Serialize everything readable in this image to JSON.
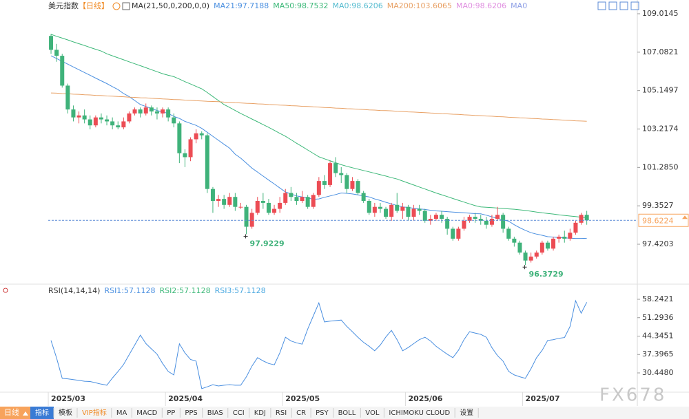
{
  "chart_data": {
    "type": "candlestick",
    "title": "美元指数",
    "period": "【日线】",
    "indicator_label": "MA(21,50,0,200,0,0)",
    "header_items": [
      {
        "text": "MA21:97.7188",
        "color": "#4a8fe0"
      },
      {
        "text": "MA50:98.7532",
        "color": "#3cb878"
      },
      {
        "text": "MA0:98.6206",
        "color": "#56bcd0"
      },
      {
        "text": "MA200:103.6065",
        "color": "#e8a064"
      },
      {
        "text": "MA0:98.6206",
        "color": "#e08fe0"
      },
      {
        "text": "MA0",
        "color": "#8fa0e6"
      }
    ],
    "categories": [
      "2025/03",
      null,
      null,
      null,
      null,
      null,
      null,
      null,
      null,
      null,
      null,
      null,
      null,
      null,
      null,
      null,
      null,
      null,
      null,
      null,
      null,
      "2025/04",
      null,
      null,
      null,
      null,
      null,
      null,
      null,
      null,
      null,
      null,
      null,
      null,
      null,
      null,
      null,
      null,
      null,
      null,
      null,
      null,
      "2025/05",
      null,
      null,
      null,
      null,
      null,
      null,
      null,
      null,
      null,
      null,
      null,
      null,
      null,
      null,
      null,
      null,
      null,
      null,
      null,
      null,
      null,
      "2025/06",
      null,
      null,
      null,
      null,
      null,
      null,
      null,
      null,
      null,
      null,
      null,
      null,
      null,
      null,
      null,
      null,
      null,
      null,
      null,
      null,
      "2025/07",
      null,
      null,
      null,
      null,
      null,
      null,
      null,
      null,
      null,
      null,
      null
    ],
    "ohlc": [
      [
        107.9,
        108.0,
        107.0,
        107.2
      ],
      [
        107.2,
        107.5,
        106.6,
        106.9
      ],
      [
        106.9,
        107.0,
        105.3,
        105.4
      ],
      [
        105.4,
        105.5,
        104.0,
        104.2
      ],
      [
        104.2,
        104.4,
        103.6,
        103.8
      ],
      [
        103.8,
        104.1,
        103.5,
        103.9
      ],
      [
        103.9,
        104.2,
        103.5,
        103.7
      ],
      [
        103.7,
        103.9,
        103.2,
        103.4
      ],
      [
        103.4,
        103.9,
        103.3,
        103.8
      ],
      [
        103.8,
        104.0,
        103.5,
        103.7
      ],
      [
        103.7,
        103.9,
        103.4,
        103.6
      ],
      [
        103.6,
        103.8,
        103.2,
        103.4
      ],
      [
        103.4,
        103.6,
        103.2,
        103.3
      ],
      [
        103.3,
        103.8,
        103.2,
        103.6
      ],
      [
        103.6,
        104.1,
        103.5,
        104.0
      ],
      [
        104.0,
        104.3,
        103.9,
        104.2
      ],
      [
        104.2,
        104.3,
        103.8,
        104.0
      ],
      [
        104.0,
        104.5,
        103.9,
        104.3
      ],
      [
        104.3,
        104.4,
        103.9,
        104.1
      ],
      [
        104.1,
        104.3,
        103.7,
        104.0
      ],
      [
        104.0,
        104.3,
        103.8,
        104.2
      ],
      [
        104.2,
        104.3,
        103.6,
        103.8
      ],
      [
        103.8,
        104.0,
        103.3,
        103.5
      ],
      [
        103.5,
        103.6,
        101.5,
        102.0
      ],
      [
        102.0,
        102.2,
        101.3,
        101.8
      ],
      [
        101.8,
        102.8,
        101.6,
        102.7
      ],
      [
        102.7,
        103.2,
        102.5,
        103.0
      ],
      [
        103.0,
        103.1,
        102.7,
        102.9
      ],
      [
        102.9,
        103.0,
        100.0,
        100.2
      ],
      [
        100.2,
        100.3,
        99.0,
        99.6
      ],
      [
        99.6,
        99.9,
        99.3,
        99.7
      ],
      [
        99.7,
        99.9,
        99.2,
        99.4
      ],
      [
        99.4,
        100.0,
        99.3,
        99.8
      ],
      [
        99.8,
        100.0,
        99.1,
        99.3
      ],
      [
        99.3,
        99.5,
        99.2,
        99.3
      ],
      [
        99.3,
        99.4,
        97.9229,
        98.3
      ],
      [
        98.3,
        99.2,
        98.2,
        99.0
      ],
      [
        99.0,
        99.8,
        98.9,
        99.6
      ],
      [
        99.6,
        100.0,
        99.2,
        99.5
      ],
      [
        99.5,
        99.7,
        98.9,
        99.0
      ],
      [
        99.0,
        99.4,
        98.9,
        99.2
      ],
      [
        99.2,
        99.8,
        99.0,
        99.5
      ],
      [
        99.5,
        100.2,
        99.4,
        100.0
      ],
      [
        100.0,
        100.3,
        99.6,
        99.8
      ],
      [
        99.8,
        100.0,
        99.4,
        99.6
      ],
      [
        99.6,
        100.1,
        99.5,
        99.8
      ],
      [
        99.8,
        99.9,
        99.2,
        99.3
      ],
      [
        99.3,
        100.0,
        99.2,
        99.9
      ],
      [
        99.9,
        100.8,
        99.8,
        100.6
      ],
      [
        100.6,
        100.9,
        100.2,
        100.4
      ],
      [
        100.4,
        101.6,
        100.3,
        101.5
      ],
      [
        101.5,
        101.8,
        100.8,
        101.0
      ],
      [
        101.0,
        101.3,
        100.5,
        100.9
      ],
      [
        100.9,
        101.0,
        100.0,
        100.2
      ],
      [
        100.2,
        100.8,
        100.1,
        100.6
      ],
      [
        100.6,
        100.7,
        99.9,
        100.0
      ],
      [
        100.0,
        100.1,
        99.5,
        99.6
      ],
      [
        99.6,
        99.7,
        98.9,
        99.0
      ],
      [
        99.0,
        99.5,
        98.8,
        99.3
      ],
      [
        99.3,
        99.5,
        99.0,
        99.2
      ],
      [
        99.2,
        99.3,
        98.7,
        98.8
      ],
      [
        98.8,
        99.5,
        98.6,
        99.4
      ],
      [
        99.4,
        100.0,
        99.0,
        99.1
      ],
      [
        99.1,
        99.5,
        98.7,
        99.3
      ],
      [
        99.3,
        99.4,
        98.6,
        98.8
      ],
      [
        98.8,
        99.4,
        98.6,
        99.2
      ],
      [
        99.2,
        99.4,
        98.9,
        99.1
      ],
      [
        99.1,
        99.2,
        98.5,
        98.6
      ],
      [
        98.6,
        98.9,
        98.4,
        98.7
      ],
      [
        98.7,
        99.0,
        98.6,
        98.9
      ],
      [
        98.9,
        99.1,
        98.5,
        98.7
      ],
      [
        98.7,
        98.8,
        97.9,
        98.2
      ],
      [
        98.2,
        98.3,
        97.6,
        97.7
      ],
      [
        97.7,
        98.3,
        97.6,
        98.2
      ],
      [
        98.2,
        98.8,
        98.1,
        98.6
      ],
      [
        98.6,
        98.9,
        98.5,
        98.8
      ],
      [
        98.8,
        99.0,
        98.5,
        98.7
      ],
      [
        98.7,
        98.9,
        98.4,
        98.6
      ],
      [
        98.6,
        98.8,
        98.2,
        98.4
      ],
      [
        98.4,
        98.9,
        98.3,
        98.7
      ],
      [
        98.7,
        99.3,
        98.6,
        98.9
      ],
      [
        98.9,
        99.0,
        98.0,
        98.2
      ],
      [
        98.2,
        98.3,
        97.6,
        97.7
      ],
      [
        97.7,
        97.8,
        97.3,
        97.5
      ],
      [
        97.5,
        97.6,
        96.9,
        97.0
      ],
      [
        97.0,
        97.1,
        96.3729,
        96.6
      ],
      [
        96.6,
        97.0,
        96.5,
        96.8
      ],
      [
        96.8,
        97.1,
        96.7,
        97.0
      ],
      [
        97.0,
        97.6,
        96.9,
        97.5
      ],
      [
        97.5,
        97.6,
        97.1,
        97.2
      ],
      [
        97.2,
        97.8,
        97.1,
        97.7
      ],
      [
        97.7,
        97.9,
        97.5,
        97.8
      ],
      [
        97.8,
        98.1,
        97.5,
        97.7
      ],
      [
        97.7,
        98.2,
        97.6,
        98.0
      ],
      [
        98.0,
        98.6,
        97.9,
        98.5
      ],
      [
        98.5,
        99.0,
        98.4,
        98.9
      ],
      [
        98.9,
        99.1,
        98.4,
        98.6224
      ]
    ],
    "up_color": "#ec4c54",
    "down_color": "#3fb27a",
    "ylim": [
      95.516,
      109.707
    ],
    "yticks": [
      109.0145,
      107.0821,
      105.1497,
      103.2174,
      {
        "value": 101.285,
        "label": "101.2850"
      },
      99.3527,
      97.4203
    ],
    "last_price_color": "#f7a35c",
    "annotations": [
      97.9229,
      96.3729
    ],
    "series": [
      {
        "color": "#4a8fe0",
        "values": [
          106.9,
          106.76,
          106.62,
          106.48,
          106.34,
          106.2,
          106.06,
          105.92,
          105.78,
          105.64,
          105.5,
          105.35,
          105.2,
          105.0,
          104.85,
          104.65,
          104.45,
          104.35,
          104.25,
          104.15,
          104.08,
          104.0,
          103.85,
          103.75,
          103.6,
          103.5,
          103.4,
          103.25,
          103.05,
          102.85,
          102.65,
          102.45,
          102.25,
          101.95,
          101.75,
          101.5,
          101.25,
          101.05,
          100.85,
          100.65,
          100.45,
          100.25,
          100.05,
          99.95,
          99.85,
          99.8,
          99.75,
          99.68,
          99.7,
          99.78,
          99.85,
          99.92,
          100.0,
          99.98,
          99.95,
          99.9,
          99.85,
          99.8,
          99.7,
          99.62,
          99.53,
          99.45,
          99.37,
          99.3,
          99.27,
          99.23,
          99.2,
          99.17,
          99.13,
          99.1,
          99.08,
          99.06,
          99.04,
          99.02,
          99.0,
          98.98,
          98.96,
          98.95,
          98.88,
          98.8,
          98.72,
          98.65,
          98.58,
          98.4,
          98.25,
          98.12,
          98.0,
          97.93,
          97.87,
          97.8,
          97.78,
          97.76,
          97.74,
          97.72,
          97.71,
          97.71,
          97.7188
        ]
      },
      {
        "color": "#3cb878",
        "values": [
          107.98,
          107.88,
          107.79,
          107.7,
          107.6,
          107.51,
          107.42,
          107.32,
          107.23,
          107.14,
          107.0,
          106.9,
          106.8,
          106.7,
          106.6,
          106.5,
          106.4,
          106.3,
          106.2,
          106.1,
          106.0,
          105.92,
          105.85,
          105.73,
          105.6,
          105.48,
          105.36,
          105.24,
          105.05,
          104.85,
          104.65,
          104.45,
          104.3,
          104.15,
          104.0,
          103.86,
          103.72,
          103.58,
          103.44,
          103.3,
          103.15,
          103.0,
          102.85,
          102.68,
          102.5,
          102.33,
          102.16,
          101.99,
          101.82,
          101.72,
          101.62,
          101.52,
          101.42,
          101.34,
          101.27,
          101.2,
          101.13,
          101.06,
          100.99,
          100.92,
          100.85,
          100.77,
          100.7,
          100.6,
          100.5,
          100.4,
          100.3,
          100.2,
          100.1,
          100.0,
          99.91,
          99.82,
          99.72,
          99.63,
          99.54,
          99.45,
          99.36,
          99.3,
          99.28,
          99.26,
          99.24,
          99.22,
          99.2,
          99.18,
          99.15,
          99.12,
          99.08,
          99.04,
          99.0,
          98.97,
          98.94,
          98.9,
          98.87,
          98.84,
          98.81,
          98.78,
          98.7532
        ]
      },
      {
        "color": "#e8a064",
        "values": [
          105.03,
          105.02,
          105.0,
          104.99,
          104.97,
          104.96,
          104.94,
          104.93,
          104.91,
          104.9,
          104.88,
          104.87,
          104.85,
          104.84,
          104.82,
          104.81,
          104.79,
          104.78,
          104.76,
          104.75,
          104.73,
          104.72,
          104.7,
          104.69,
          104.67,
          104.66,
          104.64,
          104.63,
          104.61,
          104.6,
          104.59,
          104.57,
          104.56,
          104.54,
          104.53,
          104.51,
          104.5,
          104.48,
          104.47,
          104.45,
          104.44,
          104.42,
          104.41,
          104.39,
          104.38,
          104.36,
          104.35,
          104.33,
          104.32,
          104.3,
          104.29,
          104.27,
          104.26,
          104.24,
          104.23,
          104.21,
          104.2,
          104.18,
          104.17,
          104.15,
          104.14,
          104.13,
          104.11,
          104.1,
          104.08,
          104.07,
          104.05,
          104.04,
          104.02,
          104.01,
          103.99,
          103.98,
          103.96,
          103.95,
          103.93,
          103.92,
          103.9,
          103.89,
          103.87,
          103.86,
          103.84,
          103.83,
          103.81,
          103.8,
          103.78,
          103.77,
          103.75,
          103.74,
          103.72,
          103.71,
          103.69,
          103.68,
          103.66,
          103.65,
          103.63,
          103.62,
          103.6065
        ]
      }
    ],
    "rsi": {
      "title": "RSI(14,14,14)",
      "header_items": [
        {
          "text": "RSI1:57.1128",
          "color": "#4a8fe0"
        },
        {
          "text": "RSI2:57.1128",
          "color": "#3cb878"
        },
        {
          "text": "RSI3:57.1128",
          "color": "#4aa8e0"
        }
      ],
      "color": "#4a8fe0",
      "ylim": [
        23.17,
        63.44
      ],
      "yticks": [
        58.2421,
        51.2936,
        44.3451,
        37.3965,
        {
          "value": 30.448,
          "label": "30.4480"
        }
      ],
      "values": [
        42.7,
        36,
        28.4,
        28.2,
        27.9,
        27.6,
        27.3,
        27.2,
        26.7,
        26.2,
        25.8,
        28.5,
        31,
        33.6,
        37.3,
        41,
        44.7,
        41.5,
        39.5,
        37.5,
        34,
        31,
        29.7,
        41.4,
        38,
        35.5,
        34.9,
        24.5,
        25.2,
        26,
        25.5,
        25.8,
        26,
        25.8,
        25.8,
        29,
        33,
        36.2,
        35,
        34,
        33.5,
        38,
        43.9,
        42.5,
        41.8,
        41.3,
        47,
        52,
        56.9,
        49.7,
        50,
        50.2,
        50.4,
        48,
        46,
        43.9,
        42,
        40.5,
        38.8,
        41,
        44,
        46.5,
        43,
        38.8,
        40,
        41.5,
        43,
        43.9,
        42.5,
        40.5,
        39,
        37.5,
        36.2,
        39,
        43,
        46,
        45.5,
        45,
        43.9,
        40,
        37,
        34.9,
        31,
        29.7,
        29,
        28.4,
        32,
        36.2,
        39,
        42.7,
        43,
        43.5,
        43.8,
        48,
        57.7,
        53,
        57.1128
      ]
    },
    "watermark": "FX678"
  },
  "toolbar": {
    "period": "日线",
    "tabs": [
      "指标",
      "模板",
      "VIP指标",
      "MA",
      "MACD",
      "PP",
      "PPS",
      "BIAS",
      "CCI",
      "KDJ",
      "RSI",
      "CR",
      "PSY",
      "BOLL",
      "VOL",
      "ICHIMOKU CLOUD",
      "设置"
    ]
  }
}
